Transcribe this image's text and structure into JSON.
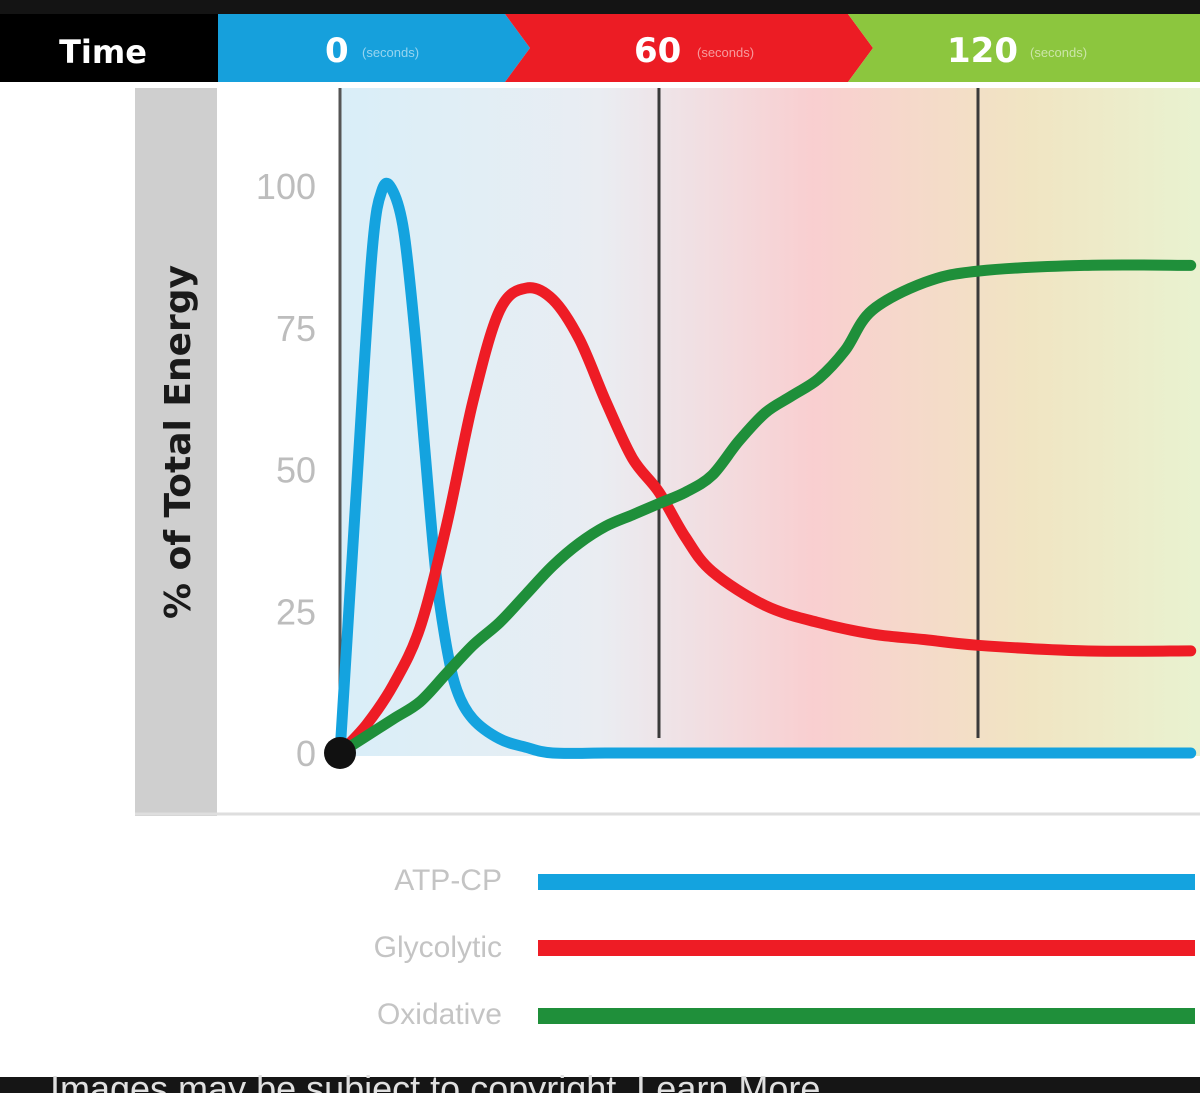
{
  "colors": {
    "atp_cp": "#14a3df",
    "glycolytic": "#ee1c25",
    "oxidative": "#1f8f3a",
    "header_time_bg": "#000000",
    "header_0_bg": "#16a0dc",
    "header_60_bg": "#ec1c24",
    "header_120_bg": "#8cc63e",
    "frame_bg": "#141414"
  },
  "header": {
    "time_label": "Time",
    "segments": [
      {
        "value": "0",
        "unit": "(seconds)"
      },
      {
        "value": "60",
        "unit": "(seconds)"
      },
      {
        "value": "120",
        "unit": "(seconds)"
      }
    ]
  },
  "legend": [
    {
      "label": "ATP-CP",
      "series_index": 0
    },
    {
      "label": "Glycolytic",
      "series_index": 1
    },
    {
      "label": "Oxidative",
      "series_index": 2
    }
  ],
  "footer_text": "Images may be subject to copyright. Learn More",
  "chart_data": {
    "type": "line",
    "title": "",
    "xlabel": "Time",
    "ylabel": "% of Total Energy",
    "xlim": [
      0,
      160
    ],
    "ylim": [
      0,
      100
    ],
    "xticks": [
      0,
      60,
      120
    ],
    "yticks": [
      0,
      25,
      50,
      75,
      100
    ],
    "grid": true,
    "legend_position": "bottom",
    "series": [
      {
        "name": "ATP-CP",
        "x": [
          0,
          3,
          6,
          8,
          10,
          12,
          14,
          16,
          18,
          20,
          22,
          25,
          30,
          35,
          40,
          50,
          60,
          80,
          100,
          120,
          160
        ],
        "y": [
          0,
          45,
          88,
          99.5,
          99,
          92,
          75,
          53,
          32,
          19,
          11,
          6,
          2.5,
          1,
          0,
          0,
          0,
          0,
          0,
          0,
          0
        ]
      },
      {
        "name": "Glycolytic",
        "x": [
          0,
          5,
          10,
          15,
          20,
          25,
          30,
          35,
          40,
          45,
          50,
          55,
          60,
          65,
          70,
          80,
          90,
          100,
          110,
          120,
          140,
          160
        ],
        "y": [
          0,
          5,
          12,
          22,
          40,
          62,
          78,
          82,
          80,
          73,
          62,
          52,
          46,
          38,
          32,
          26,
          23,
          21,
          20,
          19,
          18,
          18
        ]
      },
      {
        "name": "Oxidative",
        "x": [
          0,
          5,
          10,
          15,
          20,
          25,
          30,
          35,
          40,
          45,
          50,
          55,
          60,
          65,
          70,
          75,
          80,
          85,
          90,
          95,
          100,
          110,
          120,
          140,
          160
        ],
        "y": [
          0,
          3,
          6,
          9,
          14,
          19,
          23,
          28,
          33,
          37,
          40,
          42,
          44,
          46,
          49,
          55,
          60,
          63,
          66,
          71,
          78,
          83,
          85,
          86,
          86
        ]
      }
    ]
  }
}
